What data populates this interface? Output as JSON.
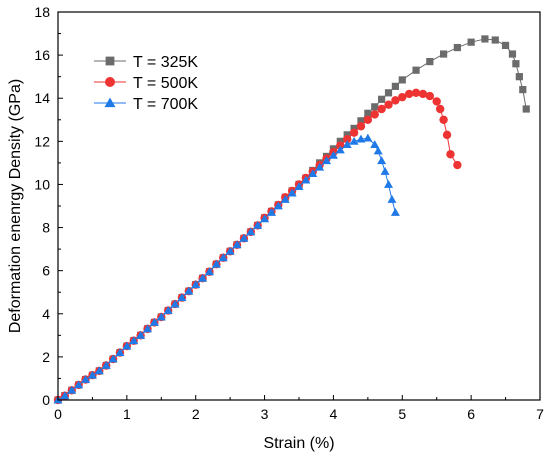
{
  "chart_data": {
    "type": "line",
    "xlabel": "Strain (%)",
    "ylabel": "Deformation enenrgy Density (GPa)",
    "xlim": [
      0,
      7
    ],
    "ylim": [
      0,
      18
    ],
    "xticks": [
      0,
      1,
      2,
      3,
      4,
      5,
      6,
      7
    ],
    "yticks": [
      0,
      2,
      4,
      6,
      8,
      10,
      12,
      14,
      16,
      18
    ],
    "grid": false,
    "legend_position": "top-left",
    "series": [
      {
        "name": "T = 325K",
        "color": "#6b6b6b",
        "marker": "square",
        "points": [
          [
            0.0,
            0.0
          ],
          [
            0.1,
            0.2
          ],
          [
            0.2,
            0.45
          ],
          [
            0.3,
            0.7
          ],
          [
            0.4,
            0.95
          ],
          [
            0.5,
            1.15
          ],
          [
            0.6,
            1.35
          ],
          [
            0.7,
            1.6
          ],
          [
            0.8,
            1.9
          ],
          [
            0.9,
            2.2
          ],
          [
            1.0,
            2.5
          ],
          [
            1.1,
            2.75
          ],
          [
            1.2,
            3.0
          ],
          [
            1.3,
            3.3
          ],
          [
            1.4,
            3.6
          ],
          [
            1.5,
            3.85
          ],
          [
            1.6,
            4.15
          ],
          [
            1.7,
            4.45
          ],
          [
            1.8,
            4.75
          ],
          [
            1.9,
            5.05
          ],
          [
            2.0,
            5.35
          ],
          [
            2.1,
            5.65
          ],
          [
            2.2,
            5.95
          ],
          [
            2.3,
            6.3
          ],
          [
            2.4,
            6.6
          ],
          [
            2.5,
            6.9
          ],
          [
            2.6,
            7.2
          ],
          [
            2.7,
            7.5
          ],
          [
            2.8,
            7.8
          ],
          [
            2.9,
            8.1
          ],
          [
            3.0,
            8.45
          ],
          [
            3.1,
            8.75
          ],
          [
            3.2,
            9.05
          ],
          [
            3.3,
            9.4
          ],
          [
            3.4,
            9.7
          ],
          [
            3.5,
            10.0
          ],
          [
            3.6,
            10.3
          ],
          [
            3.7,
            10.65
          ],
          [
            3.8,
            11.0
          ],
          [
            3.9,
            11.3
          ],
          [
            4.0,
            11.65
          ],
          [
            4.1,
            12.0
          ],
          [
            4.2,
            12.3
          ],
          [
            4.3,
            12.6
          ],
          [
            4.4,
            12.95
          ],
          [
            4.5,
            13.3
          ],
          [
            4.6,
            13.6
          ],
          [
            4.7,
            13.95
          ],
          [
            4.8,
            14.25
          ],
          [
            4.9,
            14.55
          ],
          [
            5.0,
            14.85
          ],
          [
            5.2,
            15.3
          ],
          [
            5.4,
            15.7
          ],
          [
            5.6,
            16.05
          ],
          [
            5.8,
            16.35
          ],
          [
            6.0,
            16.6
          ],
          [
            6.2,
            16.75
          ],
          [
            6.35,
            16.7
          ],
          [
            6.5,
            16.45
          ],
          [
            6.6,
            16.05
          ],
          [
            6.65,
            15.6
          ],
          [
            6.7,
            15.0
          ],
          [
            6.75,
            14.4
          ],
          [
            6.8,
            13.5
          ]
        ]
      },
      {
        "name": "T = 500K",
        "color": "#ee3333",
        "marker": "circle",
        "points": [
          [
            0.0,
            0.0
          ],
          [
            0.1,
            0.2
          ],
          [
            0.2,
            0.45
          ],
          [
            0.3,
            0.7
          ],
          [
            0.4,
            0.95
          ],
          [
            0.5,
            1.15
          ],
          [
            0.6,
            1.35
          ],
          [
            0.7,
            1.6
          ],
          [
            0.8,
            1.9
          ],
          [
            0.9,
            2.2
          ],
          [
            1.0,
            2.5
          ],
          [
            1.1,
            2.75
          ],
          [
            1.2,
            3.0
          ],
          [
            1.3,
            3.3
          ],
          [
            1.4,
            3.6
          ],
          [
            1.5,
            3.85
          ],
          [
            1.6,
            4.15
          ],
          [
            1.7,
            4.45
          ],
          [
            1.8,
            4.75
          ],
          [
            1.9,
            5.05
          ],
          [
            2.0,
            5.35
          ],
          [
            2.1,
            5.65
          ],
          [
            2.2,
            5.95
          ],
          [
            2.3,
            6.3
          ],
          [
            2.4,
            6.6
          ],
          [
            2.5,
            6.9
          ],
          [
            2.6,
            7.2
          ],
          [
            2.7,
            7.5
          ],
          [
            2.8,
            7.8
          ],
          [
            2.9,
            8.1
          ],
          [
            3.0,
            8.45
          ],
          [
            3.1,
            8.75
          ],
          [
            3.2,
            9.05
          ],
          [
            3.3,
            9.4
          ],
          [
            3.4,
            9.7
          ],
          [
            3.5,
            10.0
          ],
          [
            3.6,
            10.3
          ],
          [
            3.7,
            10.6
          ],
          [
            3.8,
            10.9
          ],
          [
            3.9,
            11.2
          ],
          [
            4.0,
            11.5
          ],
          [
            4.1,
            11.8
          ],
          [
            4.2,
            12.1
          ],
          [
            4.3,
            12.4
          ],
          [
            4.4,
            12.7
          ],
          [
            4.5,
            13.0
          ],
          [
            4.6,
            13.25
          ],
          [
            4.7,
            13.5
          ],
          [
            4.8,
            13.7
          ],
          [
            4.9,
            13.9
          ],
          [
            5.0,
            14.05
          ],
          [
            5.1,
            14.2
          ],
          [
            5.2,
            14.25
          ],
          [
            5.3,
            14.2
          ],
          [
            5.4,
            14.1
          ],
          [
            5.5,
            13.85
          ],
          [
            5.55,
            13.5
          ],
          [
            5.6,
            13.0
          ],
          [
            5.65,
            12.3
          ],
          [
            5.7,
            11.4
          ],
          [
            5.8,
            10.9
          ]
        ]
      },
      {
        "name": "T = 700K",
        "color": "#1f7ae8",
        "marker": "triangle",
        "points": [
          [
            0.0,
            0.0
          ],
          [
            0.1,
            0.2
          ],
          [
            0.2,
            0.45
          ],
          [
            0.3,
            0.7
          ],
          [
            0.4,
            0.95
          ],
          [
            0.5,
            1.15
          ],
          [
            0.6,
            1.35
          ],
          [
            0.7,
            1.6
          ],
          [
            0.8,
            1.9
          ],
          [
            0.9,
            2.2
          ],
          [
            1.0,
            2.5
          ],
          [
            1.1,
            2.75
          ],
          [
            1.2,
            3.0
          ],
          [
            1.3,
            3.3
          ],
          [
            1.4,
            3.6
          ],
          [
            1.5,
            3.85
          ],
          [
            1.6,
            4.15
          ],
          [
            1.7,
            4.45
          ],
          [
            1.8,
            4.75
          ],
          [
            1.9,
            5.05
          ],
          [
            2.0,
            5.35
          ],
          [
            2.1,
            5.65
          ],
          [
            2.2,
            5.95
          ],
          [
            2.3,
            6.3
          ],
          [
            2.4,
            6.6
          ],
          [
            2.5,
            6.9
          ],
          [
            2.6,
            7.2
          ],
          [
            2.7,
            7.5
          ],
          [
            2.8,
            7.8
          ],
          [
            2.9,
            8.1
          ],
          [
            3.0,
            8.4
          ],
          [
            3.1,
            8.7
          ],
          [
            3.2,
            9.0
          ],
          [
            3.3,
            9.3
          ],
          [
            3.4,
            9.6
          ],
          [
            3.5,
            9.9
          ],
          [
            3.6,
            10.2
          ],
          [
            3.7,
            10.5
          ],
          [
            3.8,
            10.8
          ],
          [
            3.9,
            11.1
          ],
          [
            4.0,
            11.35
          ],
          [
            4.1,
            11.6
          ],
          [
            4.2,
            11.85
          ],
          [
            4.3,
            12.0
          ],
          [
            4.4,
            12.1
          ],
          [
            4.5,
            12.15
          ],
          [
            4.6,
            11.85
          ],
          [
            4.65,
            11.55
          ],
          [
            4.7,
            11.1
          ],
          [
            4.75,
            10.6
          ],
          [
            4.8,
            10.0
          ],
          [
            4.85,
            9.3
          ],
          [
            4.9,
            8.7
          ]
        ]
      }
    ]
  }
}
